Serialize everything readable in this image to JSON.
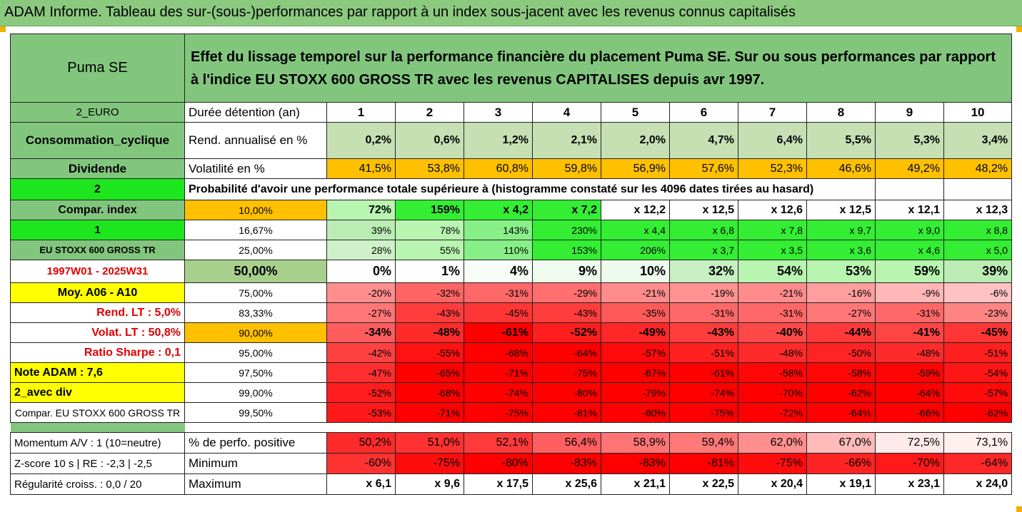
{
  "title": "ADAM Informe. Tableau des sur-(sous-)performances par rapport à un index sous-jacent avec les revenus connus capitalisés",
  "header": {
    "stock": "Puma SE",
    "description": "Effet du lissage temporel sur la performance financière du placement Puma SE. Sur ou sous performances par rapport à l'indice EU STOXX 600 GROSS TR avec les revenus CAPITALISES depuis avr 1997."
  },
  "left_labels": {
    "currency": "2_EURO",
    "sector": "Consommation_cyclique",
    "dividend": "Dividende",
    "two": "2",
    "compar_index": "Compar. index",
    "one": "1",
    "index_name": "EU STOXX 600 GROSS TR",
    "period": "1997W01 - 2025W31",
    "moy": "Moy. A06 - A10",
    "rend_lt": "Rend. LT :    5,0%",
    "volat_lt": "Volat. LT :   50,8%",
    "sharpe": "Ratio Sharpe :   0,1",
    "note": "Note ADAM : 7,6",
    "avec_div": "2_avec div",
    "compar_full": "Compar. EU STOXX 600 GROSS TR",
    "momentum": "Momentum A/V : 1 (10=neutre)",
    "zscore": "Z-score 10 s | RE : -2,3 | -2,5",
    "regularite": "Régularité croiss. : 0,0 / 20"
  },
  "row_labels": {
    "duree": "Durée détention (an)",
    "rend": "Rend. annualisé en %",
    "volat": "Volatilité en %",
    "proba": "Probabilité d'avoir une performance totale supérieure à (histogramme constaté sur les 4096 dates tirées au hasard)",
    "pct_pos": "% de perfo. positive",
    "minimum": "Minimum",
    "maximum": "Maximum"
  },
  "years": [
    "1",
    "2",
    "3",
    "4",
    "5",
    "6",
    "7",
    "8",
    "9",
    "10"
  ],
  "rend": [
    "0,2%",
    "0,6%",
    "1,2%",
    "2,1%",
    "2,0%",
    "4,7%",
    "6,4%",
    "5,5%",
    "5,3%",
    "3,4%"
  ],
  "volat": [
    "41,5%",
    "53,8%",
    "60,8%",
    "59,8%",
    "56,9%",
    "57,6%",
    "52,3%",
    "46,6%",
    "49,2%",
    "48,2%"
  ],
  "quantile_rows": [
    {
      "q": "10,00%",
      "cells": [
        "72%",
        "159%",
        "x 4,2",
        "x 7,2",
        "x 12,2",
        "x 12,5",
        "x 12,6",
        "x 12,5",
        "x 12,1",
        "x 12,3"
      ]
    },
    {
      "q": "16,67%",
      "cells": [
        "39%",
        "78%",
        "143%",
        "230%",
        "x 4,4",
        "x 6,8",
        "x 7,8",
        "x 9,7",
        "x 9,0",
        "x 8,8"
      ]
    },
    {
      "q": "25,00%",
      "cells": [
        "28%",
        "55%",
        "110%",
        "153%",
        "206%",
        "x 3,7",
        "x 3,5",
        "x 3,6",
        "x 4,6",
        "x 5,0"
      ]
    },
    {
      "q": "50,00%",
      "cells": [
        "0%",
        "1%",
        "4%",
        "9%",
        "10%",
        "32%",
        "54%",
        "53%",
        "59%",
        "39%"
      ]
    },
    {
      "q": "75,00%",
      "cells": [
        "-20%",
        "-32%",
        "-31%",
        "-29%",
        "-21%",
        "-19%",
        "-21%",
        "-16%",
        "-9%",
        "-6%"
      ]
    },
    {
      "q": "83,33%",
      "cells": [
        "-27%",
        "-43%",
        "-45%",
        "-43%",
        "-35%",
        "-31%",
        "-31%",
        "-27%",
        "-31%",
        "-23%"
      ]
    },
    {
      "q": "90,00%",
      "cells": [
        "-34%",
        "-48%",
        "-61%",
        "-52%",
        "-49%",
        "-43%",
        "-40%",
        "-44%",
        "-41%",
        "-45%"
      ]
    },
    {
      "q": "95,00%",
      "cells": [
        "-42%",
        "-55%",
        "-68%",
        "-64%",
        "-57%",
        "-51%",
        "-48%",
        "-50%",
        "-48%",
        "-51%"
      ]
    },
    {
      "q": "97,50%",
      "cells": [
        "-47%",
        "-65%",
        "-71%",
        "-75%",
        "-67%",
        "-61%",
        "-58%",
        "-58%",
        "-59%",
        "-54%"
      ]
    },
    {
      "q": "99,00%",
      "cells": [
        "-52%",
        "-68%",
        "-74%",
        "-80%",
        "-79%",
        "-74%",
        "-70%",
        "-62%",
        "-64%",
        "-57%"
      ]
    },
    {
      "q": "99,50%",
      "cells": [
        "-53%",
        "-71%",
        "-75%",
        "-81%",
        "-80%",
        "-75%",
        "-72%",
        "-64%",
        "-66%",
        "-62%"
      ]
    }
  ],
  "pct_pos": [
    "50,2%",
    "51,0%",
    "52,1%",
    "56,4%",
    "58,9%",
    "59,4%",
    "62,0%",
    "67,0%",
    "72,5%",
    "73,1%"
  ],
  "minimum": [
    "-60%",
    "-75%",
    "-80%",
    "-83%",
    "-83%",
    "-81%",
    "-75%",
    "-66%",
    "-70%",
    "-64%"
  ],
  "maximum": [
    "x 6,1",
    "x 9,6",
    "x 17,5",
    "x 25,6",
    "x 21,1",
    "x 22,5",
    "x 20,4",
    "x 19,1",
    "x 23,1",
    "x 24,0"
  ],
  "colors": {
    "title_bg": "#8bc97f",
    "header_green": "#82c67e",
    "bright_green": "#1ee61e",
    "yellow": "#ffff00",
    "orange": "#ffc000",
    "red_text": "#e00000",
    "rend_green": "#c6e0b4"
  }
}
